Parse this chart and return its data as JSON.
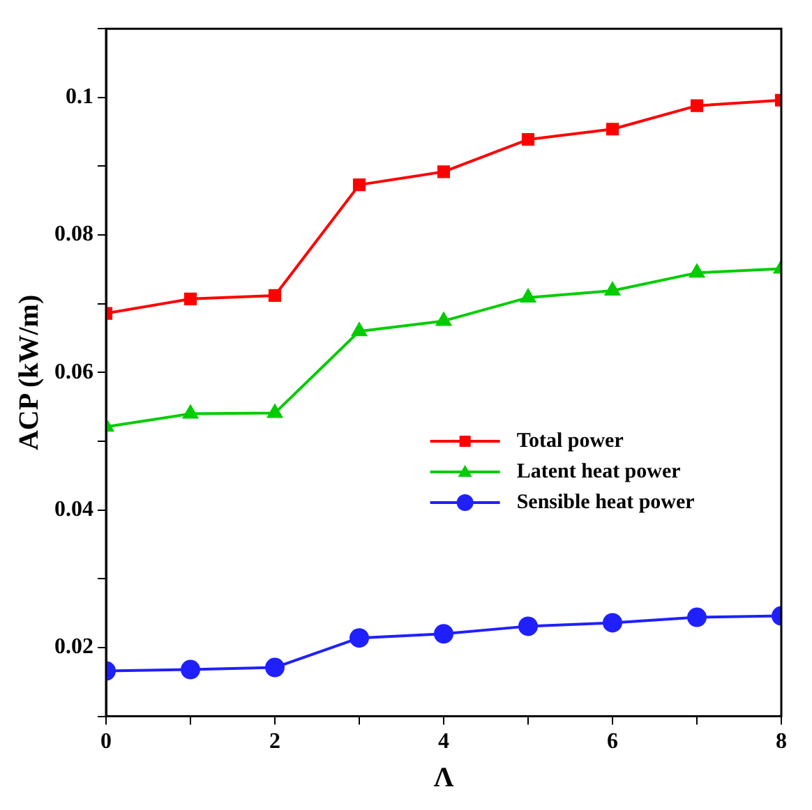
{
  "chart_data": {
    "type": "line",
    "xlabel": "Λ",
    "ylabel": "ACP (kW/m)",
    "x": [
      0,
      1,
      2,
      3,
      4,
      5,
      6,
      7,
      8
    ],
    "xlim": [
      0,
      8
    ],
    "xticks": [
      0,
      {
        "value": 1,
        "label": null
      },
      2,
      {
        "value": 3,
        "label": null
      },
      4,
      {
        "value": 5,
        "label": null
      },
      6,
      {
        "value": 7,
        "label": null
      },
      8
    ],
    "ylim": [
      0.01,
      0.11
    ],
    "yticks": [
      {
        "value": 0.01,
        "label": null
      },
      0.02,
      {
        "value": 0.03,
        "label": null
      },
      0.04,
      {
        "value": 0.05,
        "label": null
      },
      0.06,
      {
        "value": 0.07,
        "label": null
      },
      0.08,
      {
        "value": 0.09,
        "label": null
      },
      0.1,
      {
        "value": 0.11,
        "label": null
      }
    ],
    "grid": false,
    "legend": "right",
    "line_style": "solid",
    "series": [
      {
        "name": "Total power",
        "color": "#ff0000",
        "marker": "square",
        "values": [
          0.0686,
          0.0707,
          0.0712,
          0.0873,
          0.0892,
          0.0939,
          0.0954,
          0.0988,
          0.0996
        ]
      },
      {
        "name": "Latent heat power",
        "color": "#00cc00",
        "marker": "triangle",
        "values": [
          0.0521,
          0.054,
          0.0541,
          0.066,
          0.0675,
          0.0709,
          0.0719,
          0.0745,
          0.0751
        ]
      },
      {
        "name": "Sensible heat power",
        "color": "#2020ff",
        "marker": "circle",
        "values": [
          0.0166,
          0.0168,
          0.0171,
          0.0214,
          0.022,
          0.0231,
          0.0236,
          0.0244,
          0.0246
        ]
      }
    ]
  }
}
